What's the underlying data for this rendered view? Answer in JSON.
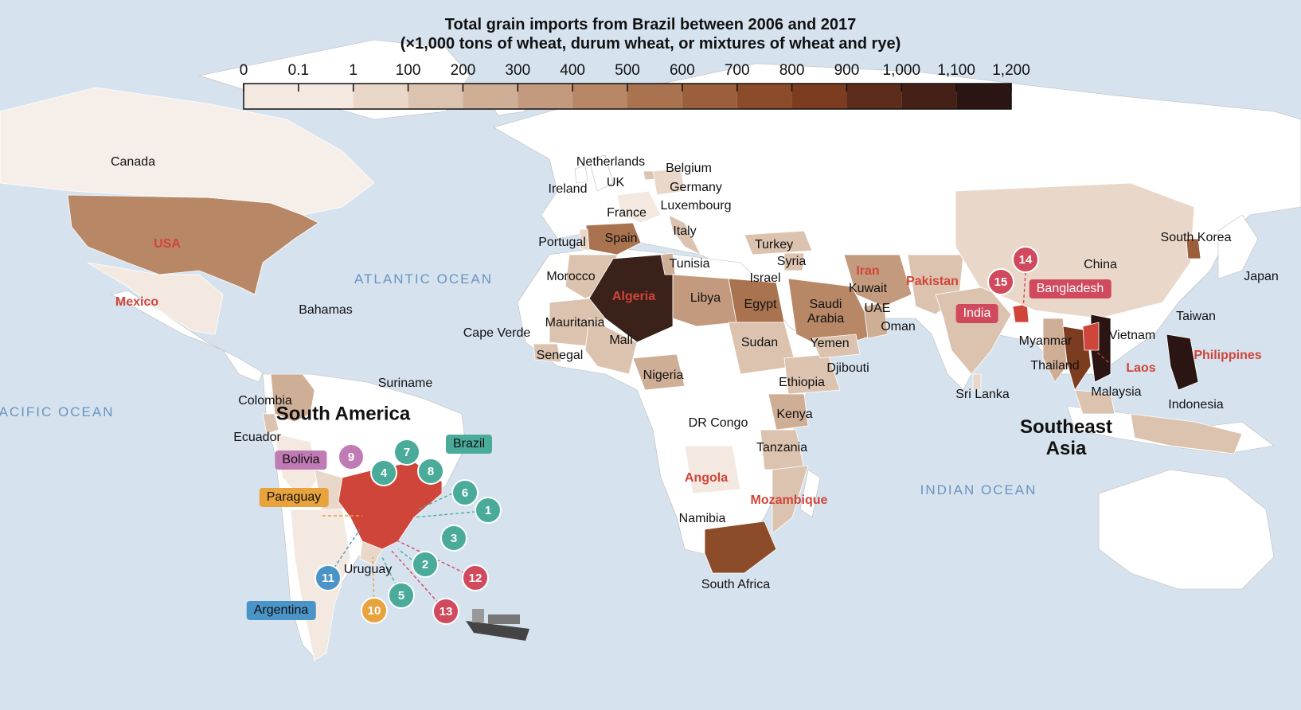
{
  "title": {
    "line1": "Total grain imports from Brazil between 2006 and  2017",
    "line2": "(×1,000 tons of wheat, durum wheat, or mixtures of wheat and rye)"
  },
  "legend": {
    "ticks": [
      "0",
      "0.1",
      "1",
      "100",
      "200",
      "300",
      "400",
      "500",
      "600",
      "700",
      "800",
      "900",
      "1,000",
      "1,100",
      "1,200"
    ],
    "colors": [
      "#f3e9e1",
      "#e9d8c9",
      "#dcc3af",
      "#cfae96",
      "#c39a7d",
      "#b78766",
      "#a97350",
      "#9b5f3b",
      "#8c4c2a",
      "#7b3c20",
      "#5e2c1a",
      "#452016",
      "#2a1512"
    ]
  },
  "oceans": [
    "ATLANTIC OCEAN",
    "PACIFIC OCEAN",
    "INDIAN OCEAN"
  ],
  "regions": {
    "south_america": "South America",
    "southeast_asia": "Southeast Asia"
  },
  "countries": {
    "canada": "Canada",
    "usa": "USA",
    "mexico": "Mexico",
    "bahamas": "Bahamas",
    "colombia": "Colombia",
    "ecuador": "Ecuador",
    "suriname": "Suriname",
    "uruguay": "Uruguay",
    "ireland": "Ireland",
    "uk": "UK",
    "netherlands": "Netherlands",
    "belgium": "Belgium",
    "germany": "Germany",
    "luxembourg": "Luxembourg",
    "france": "France",
    "italy": "Italy",
    "portugal": "Portugal",
    "spain": "Spain",
    "morocco": "Morocco",
    "algeria": "Algeria",
    "tunisia": "Tunisia",
    "libya": "Libya",
    "egypt": "Egypt",
    "mauritania": "Mauritania",
    "mali": "Mali",
    "senegal": "Senegal",
    "cape_verde": "Cape Verde",
    "nigeria": "Nigeria",
    "sudan": "Sudan",
    "ethiopia": "Ethiopia",
    "djibouti": "Djibouti",
    "kenya": "Kenya",
    "dr_congo": "DR Congo",
    "tanzania": "Tanzania",
    "angola": "Angola",
    "mozambique": "Mozambique",
    "namibia": "Namibia",
    "south_africa": "South Africa",
    "turkey": "Turkey",
    "syria": "Syria",
    "israel": "Israel",
    "iran": "Iran",
    "kuwait": "Kuwait",
    "saudi_arabia": "Saudi Arabia",
    "uae": "UAE",
    "oman": "Oman",
    "yemen": "Yemen",
    "pakistan": "Pakistan",
    "india": "India",
    "sri_lanka": "Sri Lanka",
    "bangladesh": "Bangladesh",
    "china": "China",
    "south_korea": "South Korea",
    "japan": "Japan",
    "taiwan": "Taiwan",
    "myanmar": "Myanmar",
    "thailand": "Thailand",
    "vietnam": "Vietnam",
    "laos": "Laos",
    "philippines": "Philippines",
    "malaysia": "Malaysia",
    "indonesia": "Indonesia"
  },
  "tags": {
    "bolivia": "Bolivia",
    "paraguay": "Paraguay",
    "brazil": "Brazil",
    "argentina": "Argentina",
    "india": "India",
    "bangladesh": "Bangladesh"
  },
  "badges": [
    "1",
    "2",
    "3",
    "4",
    "5",
    "6",
    "7",
    "8",
    "9",
    "10",
    "11",
    "12",
    "13",
    "14",
    "15"
  ],
  "badge_colors": {
    "teal": "#4aab9a",
    "purple": "#c07bb5",
    "orange": "#e8a33d",
    "blue": "#4b94c8",
    "red": "#d0495d"
  }
}
